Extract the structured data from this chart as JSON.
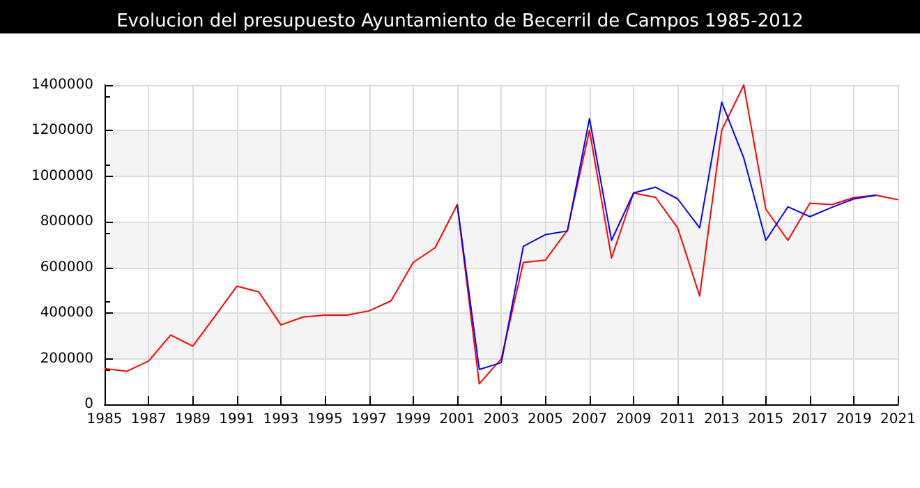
{
  "chart_data": {
    "type": "line",
    "title": "Evolucion del presupuesto Ayuntamiento de Becerril de Campos 1985-2012",
    "x": [
      1985,
      1986,
      1987,
      1988,
      1989,
      1990,
      1991,
      1992,
      1993,
      1994,
      1995,
      1996,
      1997,
      1998,
      1999,
      2000,
      2001,
      2002,
      2003,
      2004,
      2005,
      2006,
      2007,
      2008,
      2009,
      2010,
      2011,
      2012,
      2013,
      2014,
      2015,
      2016,
      2017,
      2018,
      2019,
      2020,
      2021
    ],
    "series": [
      {
        "color": "#ff0000",
        "values": [
          157000,
          145000,
          190000,
          304000,
          255000,
          385000,
          518000,
          493000,
          348000,
          383000,
          391000,
          391000,
          410000,
          454000,
          622000,
          687000,
          876000,
          90000,
          200000,
          622000,
          632000,
          764000,
          1202000,
          642000,
          927000,
          907000,
          774000,
          475000,
          1202000,
          1400000,
          856000,
          719000,
          882000,
          876000,
          907000,
          917000,
          897000
        ]
      },
      {
        "color": "#0000ff",
        "values": [
          null,
          null,
          null,
          null,
          null,
          null,
          null,
          null,
          null,
          null,
          null,
          null,
          null,
          null,
          null,
          null,
          876000,
          153000,
          183000,
          693000,
          744000,
          760000,
          1253000,
          719000,
          927000,
          952000,
          901000,
          774000,
          1325000,
          1080000,
          719000,
          866000,
          823000,
          864000,
          901000,
          917000,
          null
        ]
      }
    ],
    "xlim": [
      1985,
      2021
    ],
    "xticks": [
      1985,
      1987,
      1989,
      1991,
      1993,
      1995,
      1997,
      1999,
      2001,
      2003,
      2005,
      2007,
      2009,
      2011,
      2013,
      2015,
      2017,
      2019,
      2021
    ],
    "ylim": [
      0,
      1400000
    ],
    "yticks": [
      0,
      200000,
      400000,
      600000,
      800000,
      1000000,
      1200000,
      1400000
    ],
    "grid": true,
    "marker": "none",
    "line_style": "solid"
  }
}
